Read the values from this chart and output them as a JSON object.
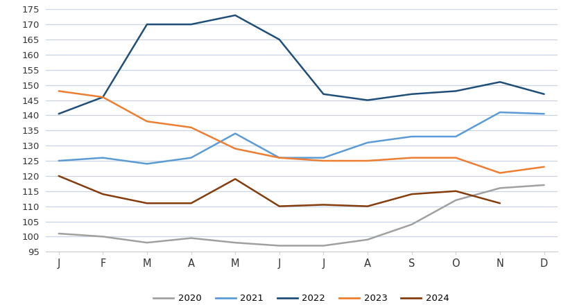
{
  "months": [
    "J",
    "F",
    "M",
    "A",
    "M",
    "J",
    "J",
    "A",
    "S",
    "O",
    "N",
    "D"
  ],
  "series": {
    "2020": [
      101,
      100,
      98,
      99.5,
      98,
      97,
      97,
      99,
      104,
      112,
      116,
      117
    ],
    "2021": [
      125,
      126,
      124,
      126,
      134,
      126,
      126,
      131,
      133,
      133,
      141,
      140.5
    ],
    "2022": [
      140.5,
      146,
      170,
      170,
      173,
      165,
      147,
      145,
      147,
      148,
      151,
      147
    ],
    "2023": [
      148,
      146,
      138,
      136,
      129,
      126,
      125,
      125,
      126,
      126,
      121,
      123
    ],
    "2024": [
      120,
      114,
      111,
      111,
      119,
      110,
      110.5,
      110,
      114,
      115,
      111,
      null
    ]
  },
  "colors": {
    "2020": "#a0a0a0",
    "2021": "#5B9BD5",
    "2022": "#1F4E79",
    "2023": "#ED7D31",
    "2024": "#843C0C"
  },
  "ylim": [
    95,
    175
  ],
  "yticks": [
    95,
    100,
    105,
    110,
    115,
    120,
    125,
    130,
    135,
    140,
    145,
    150,
    155,
    160,
    165,
    170,
    175
  ],
  "legend_order": [
    "2020",
    "2021",
    "2022",
    "2023",
    "2024"
  ],
  "background_color": "#ffffff",
  "grid_color": "#c8d4e3",
  "linewidth": 1.8
}
